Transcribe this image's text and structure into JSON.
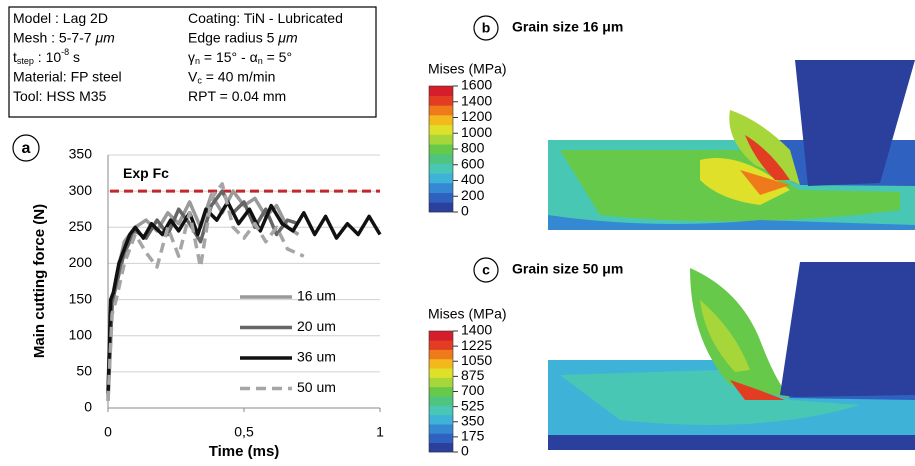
{
  "info_box": {
    "left": [
      [
        {
          "text": "Model : Lag 2D"
        }
      ],
      [
        {
          "text": "Mesh : 5-7-7 "
        },
        {
          "text": "μm",
          "italic": true
        }
      ],
      [
        {
          "text": "t"
        },
        {
          "text": "step",
          "sub": true
        },
        {
          "text": " : 10"
        },
        {
          "text": "-8",
          "sup": true
        },
        {
          "text": " s"
        }
      ],
      [
        {
          "text": "Material: FP steel"
        }
      ],
      [
        {
          "text": "Tool: HSS M35"
        }
      ]
    ],
    "right": [
      [
        {
          "text": "Coating: TiN - Lubricated"
        }
      ],
      [
        {
          "text": "Edge radius 5 "
        },
        {
          "text": "μm",
          "italic": true
        }
      ],
      [
        {
          "text": "γ"
        },
        {
          "text": "n",
          "sub": true
        },
        {
          "text": " = 15° - α"
        },
        {
          "text": "n",
          "sub": true
        },
        {
          "text": " = 5°"
        }
      ],
      [
        {
          "text": "V"
        },
        {
          "text": "c",
          "sub": true
        },
        {
          "text": " = 40 m/min"
        }
      ],
      [
        {
          "text": "RPT = 0.04 mm"
        }
      ]
    ]
  },
  "chart_data": {
    "type": "line",
    "panel_label": "a",
    "xlabel": "Time (ms)",
    "ylabel": "Main cutting force (N)",
    "xlim": [
      0,
      1
    ],
    "xticks": [
      0,
      {
        "value": 0.5,
        "label": "0,5"
      },
      1
    ],
    "ylim": [
      0,
      350
    ],
    "yticks": [
      0,
      50,
      100,
      150,
      200,
      250,
      300,
      350
    ],
    "grid": true,
    "legend": "lower right",
    "reference": {
      "name": "Exp Fc",
      "value": 300,
      "color": "#c0282d"
    },
    "series": [
      {
        "name": "16 um",
        "color": "#9a9a9a",
        "dashed": false,
        "x": [
          0,
          0.015,
          0.03,
          0.06,
          0.1,
          0.14,
          0.18,
          0.22,
          0.26,
          0.3,
          0.34,
          0.38,
          0.42,
          0.46,
          0.5,
          0.54,
          0.58,
          0.62,
          0.66,
          0.7
        ],
        "values": [
          10,
          140,
          180,
          230,
          250,
          260,
          245,
          270,
          255,
          285,
          250,
          295,
          270,
          300,
          280,
          290,
          265,
          280,
          250,
          240
        ]
      },
      {
        "name": "20 um",
        "color": "#666666",
        "dashed": false,
        "x": [
          0,
          0.015,
          0.03,
          0.06,
          0.1,
          0.14,
          0.18,
          0.22,
          0.26,
          0.3,
          0.34,
          0.38,
          0.42,
          0.46,
          0.5,
          0.54,
          0.58,
          0.62,
          0.66,
          0.7
        ],
        "values": [
          15,
          145,
          170,
          215,
          245,
          235,
          260,
          240,
          275,
          255,
          230,
          280,
          300,
          270,
          285,
          250,
          275,
          240,
          260,
          255
        ]
      },
      {
        "name": "36 um",
        "color": "#111111",
        "dashed": false,
        "x": [
          0,
          0.01,
          0.02,
          0.04,
          0.06,
          0.08,
          0.1,
          0.13,
          0.16,
          0.2,
          0.23,
          0.26,
          0.3,
          0.33,
          0.36,
          0.4,
          0.44,
          0.48,
          0.52,
          0.56,
          0.6,
          0.64,
          0.68,
          0.72,
          0.76,
          0.8,
          0.84,
          0.88,
          0.92,
          0.96,
          1
        ],
        "values": [
          20,
          150,
          160,
          200,
          220,
          240,
          250,
          235,
          255,
          240,
          260,
          245,
          270,
          240,
          275,
          260,
          285,
          255,
          275,
          245,
          280,
          255,
          245,
          270,
          240,
          265,
          235,
          255,
          240,
          265,
          240
        ]
      },
      {
        "name": "50 um",
        "color": "#a6a6a6",
        "dashed": true,
        "x": [
          0,
          0.015,
          0.03,
          0.06,
          0.1,
          0.14,
          0.18,
          0.22,
          0.26,
          0.3,
          0.34,
          0.38,
          0.42,
          0.46,
          0.5,
          0.54,
          0.58,
          0.62,
          0.66,
          0.72
        ],
        "values": [
          10,
          130,
          150,
          200,
          240,
          215,
          195,
          250,
          210,
          270,
          195,
          290,
          310,
          250,
          235,
          255,
          230,
          250,
          220,
          210
        ]
      }
    ]
  },
  "panels": [
    {
      "label": "b",
      "title": "Grain size 16 μm",
      "colorbar": {
        "title": "Mises (MPa)",
        "lim": [
          0,
          1600
        ],
        "ticks": [
          0,
          200,
          400,
          600,
          800,
          1000,
          1200,
          1400,
          1600
        ],
        "colors": [
          "#2b3f9c",
          "#2f62c0",
          "#3589d2",
          "#3fb2d8",
          "#49c7b5",
          "#4fc47f",
          "#67c94a",
          "#a7d63a",
          "#dfe02a",
          "#f3b81c",
          "#ef7a1b",
          "#e23c22",
          "#d51e2a"
        ]
      }
    },
    {
      "label": "c",
      "title": "Grain size 50 μm",
      "colorbar": {
        "title": "Mises (MPa)",
        "lim": [
          0,
          1400
        ],
        "ticks": [
          0,
          175,
          350,
          525,
          700,
          875,
          1050,
          1225,
          1400
        ],
        "colors": [
          "#2b3f9c",
          "#2f62c0",
          "#3589d2",
          "#3fb2d8",
          "#49c7b5",
          "#4fc47f",
          "#67c94a",
          "#a7d63a",
          "#dfe02a",
          "#f3b81c",
          "#ef7a1b",
          "#e23c22",
          "#d51e2a"
        ]
      }
    }
  ]
}
